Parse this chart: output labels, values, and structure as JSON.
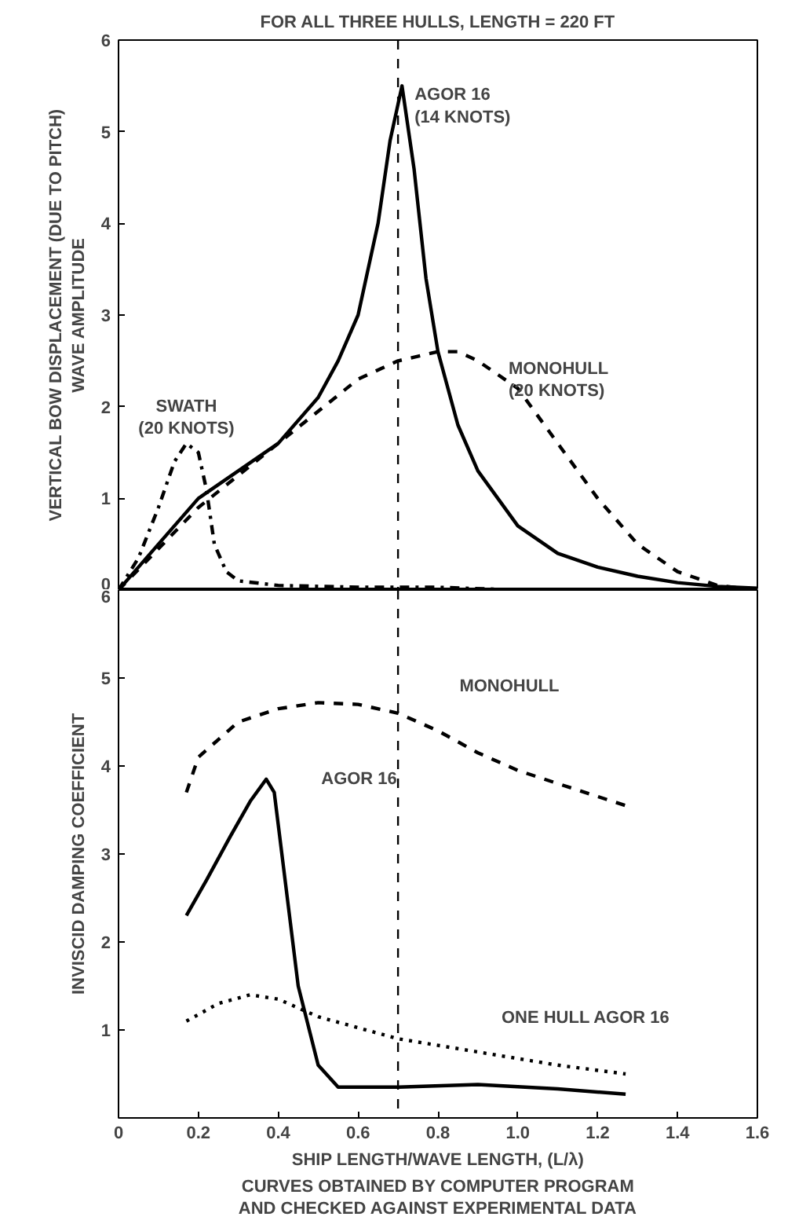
{
  "chart_data": [
    {
      "type": "line",
      "title": "FOR ALL THREE HULLS, LENGTH = 220 FT",
      "ylabel": "VERTICAL BOW DISPLACEMENT (DUE TO PITCH)\nWAVE AMPLITUDE",
      "xlim": [
        0,
        1.6
      ],
      "ylim": [
        0,
        6
      ],
      "yticks": [
        0,
        1,
        2,
        3,
        4,
        5,
        6
      ],
      "grid": false,
      "series": [
        {
          "name": "AGOR 16\n(14 KNOTS)",
          "color": "#000000",
          "line_style": "solid",
          "x": [
            0,
            0.1,
            0.2,
            0.3,
            0.4,
            0.5,
            0.55,
            0.6,
            0.65,
            0.68,
            0.71,
            0.74,
            0.77,
            0.8,
            0.85,
            0.9,
            1.0,
            1.1,
            1.2,
            1.3,
            1.4,
            1.5,
            1.6
          ],
          "values": [
            0,
            0.5,
            1.0,
            1.3,
            1.6,
            2.1,
            2.5,
            3.0,
            4.0,
            4.9,
            5.5,
            4.6,
            3.4,
            2.6,
            1.8,
            1.3,
            0.7,
            0.4,
            0.25,
            0.15,
            0.08,
            0.04,
            0.02
          ]
        },
        {
          "name": "MONOHULL\n(20 KNOTS)",
          "color": "#000000",
          "line_style": "dashed",
          "x": [
            0,
            0.1,
            0.2,
            0.3,
            0.4,
            0.5,
            0.6,
            0.7,
            0.8,
            0.85,
            0.9,
            1.0,
            1.1,
            1.2,
            1.3,
            1.4,
            1.5,
            1.6
          ],
          "values": [
            0,
            0.45,
            0.9,
            1.25,
            1.6,
            1.95,
            2.3,
            2.5,
            2.6,
            2.6,
            2.5,
            2.2,
            1.6,
            1.0,
            0.5,
            0.2,
            0.05,
            0
          ]
        },
        {
          "name": "SWATH\n(20 KNOTS)",
          "color": "#000000",
          "line_style": "dashdot",
          "x": [
            0,
            0.05,
            0.1,
            0.14,
            0.17,
            0.2,
            0.22,
            0.24,
            0.27,
            0.3,
            0.4,
            0.6,
            0.8,
            1.0
          ],
          "values": [
            0,
            0.35,
            0.9,
            1.4,
            1.6,
            1.5,
            1.1,
            0.5,
            0.2,
            0.1,
            0.05,
            0.03,
            0.03,
            0
          ]
        }
      ],
      "ref_lines": [
        {
          "axis": "x",
          "value": 0.7,
          "line_style": "dashed",
          "color": "#000000"
        }
      ],
      "tick_labels": "y"
    },
    {
      "type": "line",
      "xlabel": "SHIP LENGTH/WAVE LENGTH, (L/λ)",
      "ylabel": "INVISCID DAMPING COEFFICIENT",
      "xlim": [
        0,
        1.6
      ],
      "ylim": [
        0,
        6
      ],
      "xticks": [
        0,
        0.2,
        0.4,
        0.6,
        0.8,
        {
          "value": 1.0,
          "label": "1.0"
        },
        1.2,
        1.4,
        1.6
      ],
      "yticks": [
        1,
        2,
        3,
        4,
        5,
        6
      ],
      "grid": false,
      "series": [
        {
          "name": "MONOHULL",
          "color": "#000000",
          "line_style": "dashed",
          "x": [
            0.17,
            0.2,
            0.3,
            0.4,
            0.5,
            0.6,
            0.7,
            0.8,
            0.9,
            1.0,
            1.1,
            1.27
          ],
          "values": [
            3.7,
            4.1,
            4.5,
            4.65,
            4.72,
            4.7,
            4.6,
            4.4,
            4.15,
            3.95,
            3.8,
            3.55
          ]
        },
        {
          "name": "AGOR 16",
          "color": "#000000",
          "line_style": "solid",
          "x": [
            0.17,
            0.22,
            0.28,
            0.33,
            0.37,
            0.39,
            0.42,
            0.45,
            0.5,
            0.55,
            0.7,
            0.9,
            1.1,
            1.27
          ],
          "values": [
            2.3,
            2.7,
            3.2,
            3.6,
            3.85,
            3.7,
            2.6,
            1.5,
            0.6,
            0.35,
            0.35,
            0.38,
            0.33,
            0.27
          ]
        },
        {
          "name": "ONE HULL AGOR 16",
          "color": "#000000",
          "line_style": "dotted",
          "x": [
            0.17,
            0.25,
            0.33,
            0.4,
            0.5,
            0.7,
            0.9,
            1.1,
            1.27
          ],
          "values": [
            1.1,
            1.3,
            1.4,
            1.35,
            1.15,
            0.9,
            0.75,
            0.6,
            0.5
          ]
        }
      ],
      "ref_lines": [
        {
          "axis": "x",
          "value": 0.7,
          "line_style": "dashed",
          "color": "#000000"
        }
      ],
      "annotations": [
        "CURVES OBTAINED BY COMPUTER PROGRAM\nAND CHECKED AGAINST EXPERIMENTAL DATA"
      ]
    }
  ]
}
